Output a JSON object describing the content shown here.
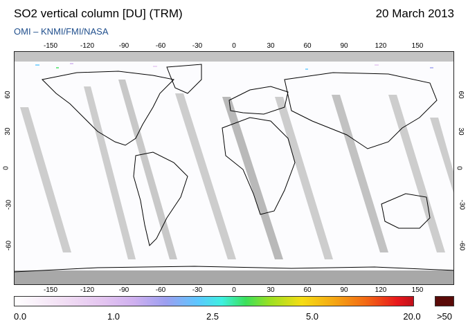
{
  "header": {
    "title": "SO2 vertical column [DU] (TRM)",
    "date": "20 March 2013",
    "subtitle": "OMI  –  KNMI/FMI/NASA"
  },
  "map": {
    "longitude_ticks": [
      "-150",
      "-120",
      "-90",
      "-60",
      "-30",
      "0",
      "30",
      "60",
      "90",
      "120",
      "150"
    ],
    "latitude_ticks": [
      "60",
      "30",
      "0",
      "-30",
      "-60"
    ],
    "projection": "equirectangular",
    "land_outline_color": "#000000",
    "no_data_color": "#a8a8a8",
    "orbit_gap_color": "#cfcfcf"
  },
  "colorbar": {
    "labels": [
      "0.0",
      "1.0",
      "2.5",
      "5.0",
      "20.0"
    ],
    "overflow_label": ">50",
    "colors": [
      "#ffffff",
      "#e4c5f0",
      "#9c9ff0",
      "#5cc7ff",
      "#3be05a",
      "#f5dd14",
      "#f36a14",
      "#e8181c"
    ],
    "overflow_color": "#5a0a08"
  }
}
